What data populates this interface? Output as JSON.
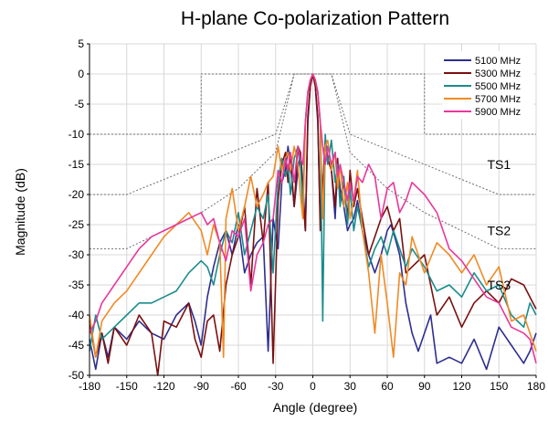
{
  "chart_data": {
    "type": "line",
    "title": "H-plane Co-polarization Pattern",
    "xlabel": "Angle (degree)",
    "ylabel": "Magnitude (dB)",
    "xlim": [
      -180,
      180
    ],
    "ylim": [
      -50,
      5
    ],
    "xticks": [
      -180,
      -150,
      -120,
      -90,
      -60,
      -30,
      0,
      30,
      60,
      90,
      120,
      150,
      180
    ],
    "yticks": [
      5,
      0,
      -5,
      -10,
      -15,
      -20,
      -25,
      -30,
      -35,
      -40,
      -45,
      -50
    ],
    "grid": true,
    "legend_position": "top-right",
    "series": [
      {
        "name": "5100 MHz",
        "color": "#2e2e8f",
        "x": [
          -180,
          -175,
          -170,
          -165,
          -160,
          -150,
          -140,
          -130,
          -120,
          -110,
          -100,
          -95,
          -90,
          -85,
          -80,
          -75,
          -70,
          -65,
          -60,
          -55,
          -50,
          -45,
          -40,
          -36,
          -32,
          -28,
          -25,
          -22,
          -20,
          -18,
          -15,
          -12,
          -10,
          -8,
          -6,
          -4,
          -2,
          0,
          2,
          4,
          6,
          8,
          10,
          12,
          15,
          18,
          20,
          22,
          25,
          28,
          30,
          33,
          36,
          40,
          45,
          50,
          55,
          60,
          63,
          66,
          70,
          75,
          80,
          85,
          90,
          95,
          100,
          110,
          120,
          130,
          140,
          150,
          160,
          170,
          175,
          180
        ],
        "y": [
          -44,
          -49,
          -43,
          -47,
          -42,
          -44,
          -41,
          -43,
          -44,
          -40,
          -38,
          -41,
          -45,
          -37,
          -32,
          -28,
          -26,
          -30,
          -25,
          -33,
          -30,
          -28,
          -27,
          -46,
          -24,
          -29,
          -18,
          -16,
          -12,
          -15,
          -22,
          -16,
          -13,
          -18,
          -26,
          -8,
          -2,
          0,
          -2,
          -8,
          -24,
          -19,
          -11,
          -14,
          -16,
          -24,
          -15,
          -19,
          -22,
          -26,
          -25,
          -24,
          -21,
          -26,
          -30,
          -33,
          -30,
          -26,
          -25,
          -27,
          -30,
          -38,
          -43,
          -46,
          -43,
          -40,
          -48,
          -47,
          -48,
          -44,
          -49,
          -42,
          -45,
          -48,
          -46,
          -43
        ]
      },
      {
        "name": "5300 MHz",
        "color": "#7a1010",
        "x": [
          -180,
          -175,
          -170,
          -165,
          -160,
          -150,
          -140,
          -130,
          -125,
          -120,
          -110,
          -100,
          -95,
          -90,
          -85,
          -80,
          -75,
          -70,
          -65,
          -60,
          -55,
          -50,
          -45,
          -40,
          -36,
          -32,
          -28,
          -25,
          -22,
          -20,
          -18,
          -15,
          -12,
          -10,
          -8,
          -6,
          -4,
          -2,
          0,
          2,
          4,
          6,
          8,
          10,
          12,
          15,
          18,
          20,
          22,
          25,
          28,
          30,
          33,
          36,
          40,
          45,
          50,
          55,
          60,
          65,
          70,
          75,
          80,
          90,
          100,
          110,
          120,
          130,
          140,
          150,
          160,
          170,
          175,
          180
        ],
        "y": [
          -41,
          -47,
          -43,
          -48,
          -42,
          -45,
          -40,
          -43,
          -50,
          -41,
          -42,
          -38,
          -44,
          -47,
          -41,
          -40,
          -46,
          -35,
          -30,
          -27,
          -22,
          -35,
          -19,
          -28,
          -18,
          -48,
          -21,
          -15,
          -13,
          -18,
          -14,
          -22,
          -12,
          -13,
          -20,
          -26,
          -7,
          -2,
          0,
          -2,
          -7,
          -26,
          -19,
          -11,
          -14,
          -16,
          -22,
          -14,
          -21,
          -18,
          -24,
          -16,
          -22,
          -19,
          -24,
          -30,
          -27,
          -24,
          -22,
          -26,
          -24,
          -33,
          -32,
          -30,
          -40,
          -37,
          -42,
          -38,
          -36,
          -38,
          -34,
          -35,
          -37,
          -39
        ]
      },
      {
        "name": "5500 MHz",
        "color": "#1b8c8c",
        "x": [
          -180,
          -175,
          -170,
          -160,
          -150,
          -140,
          -130,
          -120,
          -110,
          -100,
          -90,
          -85,
          -80,
          -75,
          -70,
          -65,
          -60,
          -55,
          -50,
          -45,
          -40,
          -36,
          -32,
          -28,
          -25,
          -22,
          -20,
          -18,
          -15,
          -12,
          -10,
          -8,
          -6,
          -4,
          -2,
          0,
          2,
          4,
          6,
          8,
          10,
          12,
          15,
          18,
          20,
          22,
          25,
          28,
          30,
          33,
          36,
          40,
          45,
          50,
          55,
          60,
          65,
          70,
          75,
          80,
          90,
          100,
          110,
          120,
          130,
          140,
          150,
          160,
          170,
          175,
          180
        ],
        "y": [
          -46,
          -40,
          -44,
          -42,
          -40,
          -38,
          -38,
          -37,
          -36,
          -33,
          -31,
          -32,
          -35,
          -30,
          -26,
          -28,
          -23,
          -30,
          -26,
          -22,
          -24,
          -20,
          -33,
          -18,
          -14,
          -17,
          -15,
          -20,
          -14,
          -12,
          -15,
          -22,
          -8,
          -3,
          -1,
          0,
          -1,
          -3,
          -8,
          -41,
          -10,
          -15,
          -11,
          -18,
          -15,
          -22,
          -17,
          -25,
          -19,
          -26,
          -22,
          -26,
          -32,
          -29,
          -27,
          -30,
          -26,
          -29,
          -32,
          -29,
          -32,
          -36,
          -35,
          -37,
          -33,
          -36,
          -35,
          -40,
          -42,
          -38,
          -40
        ]
      },
      {
        "name": "5700 MHz",
        "color": "#f08a24",
        "x": [
          -180,
          -175,
          -170,
          -160,
          -150,
          -140,
          -130,
          -120,
          -110,
          -100,
          -90,
          -85,
          -80,
          -75,
          -72,
          -70,
          -65,
          -60,
          -55,
          -50,
          -45,
          -40,
          -36,
          -32,
          -28,
          -25,
          -22,
          -20,
          -18,
          -15,
          -12,
          -10,
          -8,
          -6,
          -4,
          -2,
          0,
          2,
          4,
          6,
          8,
          10,
          12,
          15,
          18,
          20,
          22,
          25,
          28,
          30,
          33,
          36,
          40,
          45,
          50,
          55,
          60,
          65,
          70,
          75,
          80,
          90,
          100,
          110,
          120,
          130,
          140,
          150,
          160,
          170,
          175,
          180
        ],
        "y": [
          -40,
          -47,
          -41,
          -38,
          -36,
          -33,
          -30,
          -27,
          -25,
          -23,
          -26,
          -30,
          -25,
          -28,
          -47,
          -24,
          -19,
          -26,
          -22,
          -17,
          -22,
          -20,
          -18,
          -17,
          -12,
          -16,
          -14,
          -13,
          -16,
          -12,
          -15,
          -20,
          -24,
          -8,
          -3,
          -1,
          0,
          -1,
          -3,
          -8,
          -24,
          -12,
          -11,
          -16,
          -13,
          -19,
          -15,
          -22,
          -18,
          -24,
          -21,
          -16,
          -26,
          -33,
          -43,
          -30,
          -38,
          -47,
          -33,
          -35,
          -27,
          -33,
          -28,
          -30,
          -33,
          -30,
          -35,
          -32,
          -41,
          -40,
          -43,
          -46
        ]
      },
      {
        "name": "5900 MHz",
        "color": "#e8379b",
        "x": [
          -180,
          -175,
          -170,
          -160,
          -150,
          -140,
          -130,
          -120,
          -110,
          -100,
          -90,
          -85,
          -80,
          -75,
          -70,
          -65,
          -60,
          -55,
          -50,
          -45,
          -40,
          -36,
          -32,
          -28,
          -25,
          -22,
          -20,
          -18,
          -15,
          -12,
          -10,
          -8,
          -6,
          -4,
          -2,
          0,
          2,
          4,
          6,
          8,
          10,
          12,
          15,
          18,
          20,
          22,
          25,
          28,
          30,
          33,
          36,
          40,
          45,
          50,
          55,
          60,
          65,
          70,
          75,
          80,
          85,
          90,
          100,
          110,
          120,
          130,
          140,
          150,
          160,
          170,
          175,
          180
        ],
        "y": [
          -43,
          -41,
          -38,
          -35,
          -32,
          -29,
          -27,
          -26,
          -25,
          -24,
          -23,
          -25,
          -24,
          -28,
          -31,
          -26,
          -27,
          -24,
          -36,
          -30,
          -28,
          -25,
          -24,
          -16,
          -18,
          -14,
          -16,
          -13,
          -18,
          -12,
          -14,
          -15,
          -8,
          -3,
          -1,
          0,
          -1,
          -3,
          -8,
          -12,
          -15,
          -12,
          -15,
          -13,
          -17,
          -15,
          -18,
          -21,
          -18,
          -21,
          -17,
          -18,
          -15,
          -17,
          -24,
          -19,
          -18,
          -23,
          -21,
          -18,
          -19,
          -20,
          -23,
          -29,
          -31,
          -34,
          -37,
          -38,
          -42,
          -43,
          -44,
          -48
        ]
      }
    ],
    "mask_lines": [
      {
        "label": "",
        "x": [
          -180,
          -90,
          -90,
          90,
          90,
          180
        ],
        "y": [
          -10,
          -10,
          0,
          0,
          -10,
          -10
        ]
      },
      {
        "label": "TS1",
        "x": [
          -180,
          -150,
          -90,
          -30,
          -15,
          15,
          30,
          90,
          150,
          180
        ],
        "y": [
          -20,
          -20,
          -15,
          -10,
          0,
          0,
          -10,
          -15,
          -20,
          -20
        ]
      },
      {
        "label": "TS2",
        "x": [
          -180,
          -150,
          -120,
          -90,
          -60,
          -30,
          -15,
          15,
          30,
          60,
          90,
          120,
          150,
          180
        ],
        "y": [
          -29,
          -29,
          -26,
          -23,
          -19,
          -13,
          0,
          0,
          -13,
          -19,
          -23,
          -26,
          -29,
          -29
        ]
      }
    ],
    "mask_annotations": [
      {
        "text": "TS1",
        "x": 120,
        "y": -15
      },
      {
        "text": "TS2",
        "x": 120,
        "y": -26
      },
      {
        "text": "TS3",
        "x": 120,
        "y": -35
      }
    ]
  }
}
